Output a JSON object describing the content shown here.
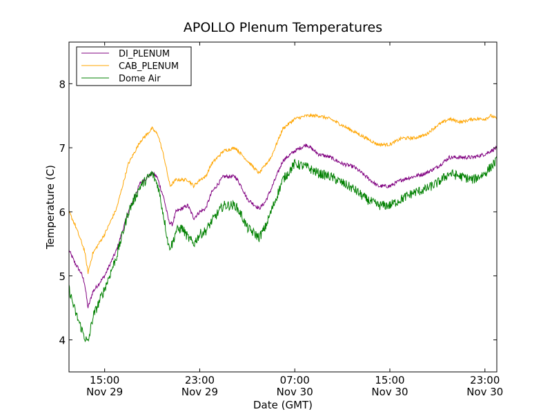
{
  "chart_data": {
    "type": "line",
    "title": "APOLLO Plenum Temperatures",
    "xlabel": "Date (GMT)",
    "ylabel": "Temperature (C)",
    "xunits": "hours since 12:00 Nov 29 (GMT)",
    "xlim": [
      0,
      36
    ],
    "ylim": [
      3.5,
      8.65
    ],
    "x_ticks": [
      {
        "value": 3,
        "time": "15:00",
        "date": "Nov 29"
      },
      {
        "value": 11,
        "time": "23:00",
        "date": "Nov 29"
      },
      {
        "value": 19,
        "time": "07:00",
        "date": "Nov 30"
      },
      {
        "value": 27,
        "time": "15:00",
        "date": "Nov 30"
      },
      {
        "value": 35,
        "time": "23:00",
        "date": "Nov 30"
      }
    ],
    "y_ticks": [
      {
        "value": 4,
        "label": "4"
      },
      {
        "value": 5,
        "label": "5"
      },
      {
        "value": 6,
        "label": "6"
      },
      {
        "value": 7,
        "label": "7"
      },
      {
        "value": 8,
        "label": "8"
      }
    ],
    "legend_position": "top-left",
    "series": [
      {
        "name": "DI_PLENUM",
        "color": "#800080",
        "noise": 0.03,
        "points": [
          [
            0,
            5.4
          ],
          [
            0.5,
            5.2
          ],
          [
            1,
            5.05
          ],
          [
            1.3,
            4.9
          ],
          [
            1.6,
            4.5
          ],
          [
            2,
            4.75
          ],
          [
            3,
            5.0
          ],
          [
            4,
            5.4
          ],
          [
            5,
            6.0
          ],
          [
            6,
            6.45
          ],
          [
            7,
            6.6
          ],
          [
            7.4,
            6.55
          ],
          [
            8,
            6.2
          ],
          [
            8.4,
            5.85
          ],
          [
            8.7,
            5.8
          ],
          [
            9,
            6.0
          ],
          [
            10,
            6.1
          ],
          [
            10.5,
            5.9
          ],
          [
            11,
            6.0
          ],
          [
            11.5,
            6.05
          ],
          [
            12,
            6.3
          ],
          [
            13,
            6.55
          ],
          [
            14,
            6.55
          ],
          [
            14.5,
            6.4
          ],
          [
            15,
            6.2
          ],
          [
            16,
            6.05
          ],
          [
            16.5,
            6.15
          ],
          [
            17,
            6.35
          ],
          [
            18,
            6.8
          ],
          [
            19,
            6.95
          ],
          [
            20,
            7.05
          ],
          [
            21,
            6.9
          ],
          [
            22,
            6.85
          ],
          [
            23,
            6.75
          ],
          [
            24,
            6.7
          ],
          [
            25,
            6.55
          ],
          [
            26,
            6.4
          ],
          [
            27,
            6.4
          ],
          [
            28,
            6.5
          ],
          [
            29,
            6.55
          ],
          [
            30,
            6.6
          ],
          [
            31,
            6.7
          ],
          [
            32,
            6.85
          ],
          [
            33,
            6.85
          ],
          [
            34,
            6.85
          ],
          [
            35,
            6.9
          ],
          [
            35.5,
            6.95
          ],
          [
            36,
            7.0
          ]
        ]
      },
      {
        "name": "CAB_PLENUM",
        "color": "#ffa500",
        "noise": 0.025,
        "points": [
          [
            0,
            6.0
          ],
          [
            0.5,
            5.8
          ],
          [
            1,
            5.55
          ],
          [
            1.3,
            5.4
          ],
          [
            1.6,
            5.05
          ],
          [
            2,
            5.35
          ],
          [
            3,
            5.65
          ],
          [
            4,
            6.05
          ],
          [
            5,
            6.75
          ],
          [
            6,
            7.1
          ],
          [
            7,
            7.3
          ],
          [
            7.5,
            7.2
          ],
          [
            8,
            6.85
          ],
          [
            8.5,
            6.4
          ],
          [
            9,
            6.5
          ],
          [
            10,
            6.5
          ],
          [
            10.5,
            6.4
          ],
          [
            11,
            6.5
          ],
          [
            11.5,
            6.55
          ],
          [
            12,
            6.75
          ],
          [
            13,
            6.95
          ],
          [
            14,
            7.0
          ],
          [
            15,
            6.8
          ],
          [
            16,
            6.6
          ],
          [
            17,
            6.85
          ],
          [
            18,
            7.3
          ],
          [
            19,
            7.45
          ],
          [
            20,
            7.5
          ],
          [
            21,
            7.5
          ],
          [
            22,
            7.45
          ],
          [
            23,
            7.35
          ],
          [
            24,
            7.25
          ],
          [
            25,
            7.15
          ],
          [
            26,
            7.05
          ],
          [
            27,
            7.05
          ],
          [
            28,
            7.15
          ],
          [
            29,
            7.15
          ],
          [
            30,
            7.2
          ],
          [
            31,
            7.35
          ],
          [
            32,
            7.45
          ],
          [
            33,
            7.4
          ],
          [
            34,
            7.45
          ],
          [
            35,
            7.45
          ],
          [
            35.5,
            7.5
          ],
          [
            36,
            7.45
          ]
        ]
      },
      {
        "name": "Dome Air",
        "color": "#008000",
        "noise": 0.075,
        "points": [
          [
            0,
            4.8
          ],
          [
            0.5,
            4.45
          ],
          [
            1,
            4.2
          ],
          [
            1.3,
            4.05
          ],
          [
            1.6,
            3.95
          ],
          [
            2,
            4.35
          ],
          [
            3,
            4.8
          ],
          [
            4,
            5.3
          ],
          [
            5,
            6.0
          ],
          [
            6,
            6.4
          ],
          [
            7,
            6.6
          ],
          [
            7.5,
            6.4
          ],
          [
            8,
            5.9
          ],
          [
            8.4,
            5.45
          ],
          [
            8.7,
            5.5
          ],
          [
            9,
            5.7
          ],
          [
            9.5,
            5.75
          ],
          [
            10,
            5.6
          ],
          [
            10.5,
            5.5
          ],
          [
            11,
            5.65
          ],
          [
            11.5,
            5.7
          ],
          [
            12,
            5.85
          ],
          [
            13,
            6.1
          ],
          [
            14,
            6.1
          ],
          [
            14.5,
            5.95
          ],
          [
            15,
            5.75
          ],
          [
            16,
            5.6
          ],
          [
            16.5,
            5.75
          ],
          [
            17,
            6.0
          ],
          [
            18,
            6.5
          ],
          [
            19,
            6.75
          ],
          [
            20,
            6.7
          ],
          [
            21,
            6.6
          ],
          [
            22,
            6.55
          ],
          [
            23,
            6.45
          ],
          [
            24,
            6.35
          ],
          [
            25,
            6.2
          ],
          [
            26,
            6.1
          ],
          [
            27,
            6.1
          ],
          [
            28,
            6.2
          ],
          [
            29,
            6.3
          ],
          [
            30,
            6.35
          ],
          [
            31,
            6.45
          ],
          [
            32,
            6.6
          ],
          [
            33,
            6.55
          ],
          [
            34,
            6.5
          ],
          [
            35,
            6.6
          ],
          [
            35.5,
            6.7
          ],
          [
            36,
            6.8
          ]
        ]
      }
    ]
  }
}
